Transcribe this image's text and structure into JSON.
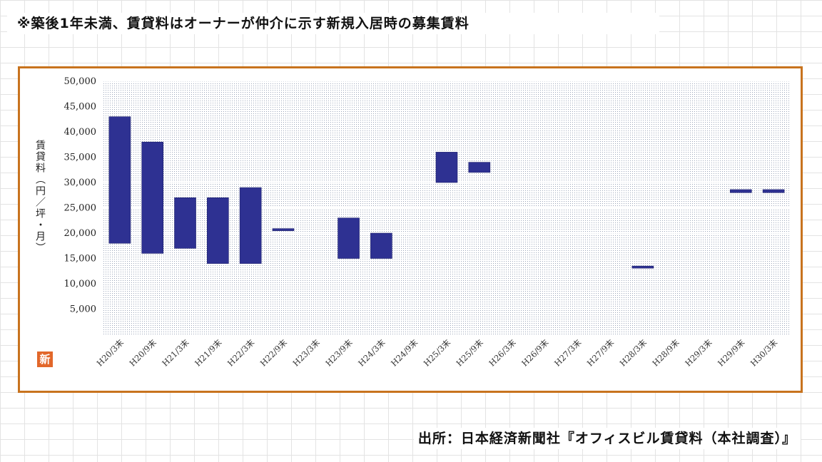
{
  "header_note": "※築後1年未満、賃貸料はオーナーが仲介に示す新規入居時の募集賃料",
  "source_note": "出所：日本経済新聞社『オフィスビル賃貸料（本社調査）』",
  "logo_text": "新",
  "colors": {
    "bar": "#2e3192",
    "frame": "#c8731e",
    "plot_bg": "#ffffff",
    "dots": "#9aa4b8"
  },
  "chart_data": {
    "type": "bar",
    "subtype": "floating-range",
    "title": "",
    "xlabel": "",
    "ylabel": "賃貸料（円／坪・月）",
    "ylim": [
      0,
      50000
    ],
    "yticks": [
      50000,
      45000,
      40000,
      35000,
      30000,
      25000,
      20000,
      15000,
      10000,
      5000
    ],
    "ytick_labels": [
      "50,000",
      "45,000",
      "40,000",
      "35,000",
      "30,000",
      "25,000",
      "20,000",
      "15,000",
      "10,000",
      "5,000"
    ],
    "grid": "horizontal",
    "categories": [
      "H20/3末",
      "H20/9末",
      "H21/3末",
      "H21/9末",
      "H22/3末",
      "H22/9末",
      "H23/3末",
      "H23/9末",
      "H24/3末",
      "H24/9末",
      "H25/3末",
      "H25/9末",
      "H26/3末",
      "H26/9末",
      "H27/3末",
      "H27/9末",
      "H28/3末",
      "H28/9末",
      "H29/3末",
      "H29/9末",
      "H30/3末"
    ],
    "low": [
      18000,
      16000,
      17000,
      14000,
      14000,
      20600,
      null,
      15000,
      15000,
      null,
      30000,
      32000,
      null,
      null,
      null,
      null,
      13200,
      null,
      null,
      28000,
      28000
    ],
    "high": [
      43000,
      38000,
      27000,
      27000,
      29000,
      20900,
      null,
      23000,
      20000,
      null,
      36000,
      34000,
      null,
      null,
      null,
      null,
      13500,
      null,
      null,
      28600,
      28600
    ]
  }
}
